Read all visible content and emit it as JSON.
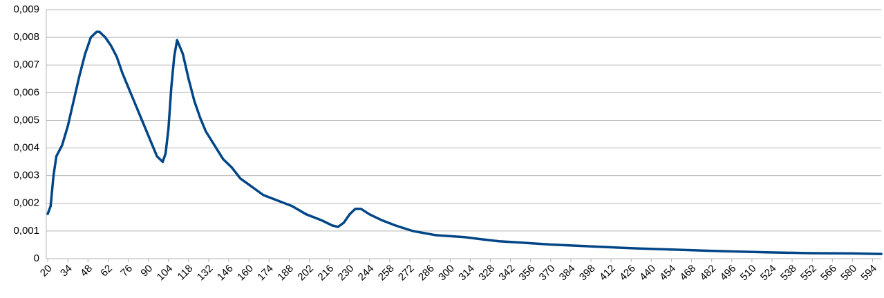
{
  "chart_data": {
    "type": "line",
    "x": [
      20,
      22,
      24,
      26,
      30,
      34,
      38,
      42,
      46,
      50,
      54,
      56,
      60,
      64,
      68,
      72,
      76,
      80,
      84,
      88,
      92,
      96,
      100,
      102,
      104,
      106,
      108,
      110,
      114,
      118,
      122,
      126,
      130,
      136,
      142,
      148,
      154,
      162,
      170,
      180,
      190,
      200,
      210,
      218,
      222,
      226,
      230,
      234,
      238,
      244,
      252,
      262,
      274,
      290,
      310,
      322,
      334,
      350,
      370,
      400,
      430,
      460,
      490,
      520,
      550,
      580,
      600
    ],
    "series": [
      {
        "color": "#004586",
        "values": [
          0.00162,
          0.0019,
          0.003,
          0.0037,
          0.0041,
          0.0048,
          0.0057,
          0.0066,
          0.0074,
          0.008,
          0.0082,
          0.0082,
          0.008,
          0.0077,
          0.0073,
          0.0067,
          0.0062,
          0.0057,
          0.0052,
          0.0047,
          0.0042,
          0.0037,
          0.0035,
          0.0038,
          0.0047,
          0.0062,
          0.0073,
          0.0079,
          0.0074,
          0.0065,
          0.0057,
          0.0051,
          0.0046,
          0.0041,
          0.0036,
          0.0033,
          0.0029,
          0.0026,
          0.0023,
          0.0021,
          0.0019,
          0.0016,
          0.0014,
          0.0012,
          0.00115,
          0.0013,
          0.0016,
          0.0018,
          0.0018,
          0.0016,
          0.0014,
          0.0012,
          0.001,
          0.00085,
          0.00078,
          0.0007,
          0.00063,
          0.00058,
          0.00051,
          0.00044,
          0.00037,
          0.00032,
          0.00027,
          0.00023,
          0.0002,
          0.00019,
          0.00017
        ]
      }
    ],
    "xlim": [
      19,
      600
    ],
    "xticks": [
      20,
      34,
      48,
      62,
      76,
      90,
      104,
      118,
      132,
      146,
      160,
      174,
      188,
      202,
      216,
      230,
      244,
      258,
      272,
      286,
      300,
      314,
      328,
      342,
      356,
      370,
      384,
      398,
      412,
      426,
      440,
      454,
      468,
      482,
      496,
      510,
      524,
      538,
      552,
      566,
      580,
      594
    ],
    "ylim": [
      0,
      0.009
    ],
    "yticks": [
      0,
      {
        "value": 0.001,
        "label": "0,001"
      },
      {
        "value": 0.002,
        "label": "0,002"
      },
      {
        "value": 0.003,
        "label": "0,003"
      },
      {
        "value": 0.004,
        "label": "0,004"
      },
      {
        "value": 0.005,
        "label": "0,005"
      },
      {
        "value": 0.006,
        "label": "0,006"
      },
      {
        "value": 0.007,
        "label": "0,007"
      },
      {
        "value": 0.008,
        "label": "0,008"
      },
      {
        "value": 0.009,
        "label": "0,009"
      }
    ],
    "grid": true
  }
}
